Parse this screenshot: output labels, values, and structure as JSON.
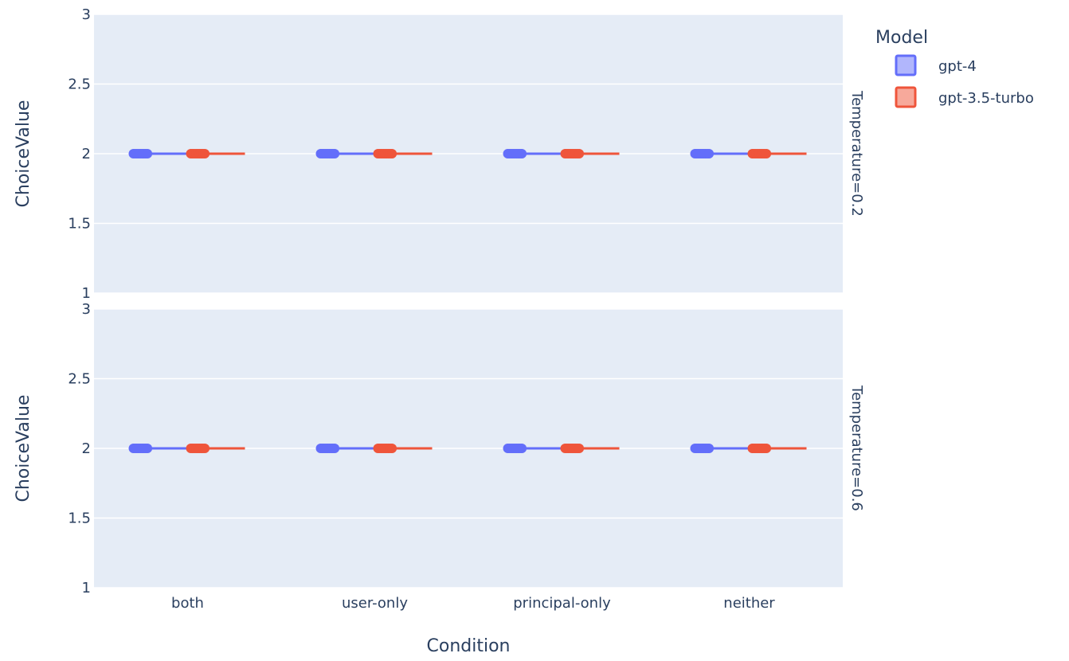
{
  "chart_data": {
    "type": "box",
    "x_axis": {
      "title": "Condition",
      "categories": [
        "both",
        "user-only",
        "principal-only",
        "neither"
      ]
    },
    "y_axis": {
      "title": "ChoiceValue",
      "range": [
        1,
        3
      ],
      "tick_values": [
        1,
        1.5,
        2,
        2.5,
        3
      ],
      "tick_labels": [
        "1",
        "1.5",
        "2",
        "2.5",
        "3"
      ]
    },
    "grid": true,
    "facets": [
      {
        "label": "Temperature=0.2",
        "series": [
          {
            "name": "gpt-4",
            "values": [
              2,
              2,
              2,
              2
            ]
          },
          {
            "name": "gpt-3.5-turbo",
            "values": [
              2,
              2,
              2,
              2
            ]
          }
        ]
      },
      {
        "label": "Temperature=0.6",
        "series": [
          {
            "name": "gpt-4",
            "values": [
              2,
              2,
              2,
              2
            ]
          },
          {
            "name": "gpt-3.5-turbo",
            "values": [
              2,
              2,
              2,
              2
            ]
          }
        ]
      }
    ],
    "legend": {
      "title": "Model",
      "placement": "top-right",
      "items": [
        {
          "name": "gpt-4",
          "color": "#636efa",
          "fill": "#b1b6fc"
        },
        {
          "name": "gpt-3.5-turbo",
          "color": "#ef553b",
          "fill": "#f7a99b"
        }
      ]
    },
    "colors": {
      "plot_background": "#e5ecf6",
      "text": "#2a3f5f"
    }
  }
}
